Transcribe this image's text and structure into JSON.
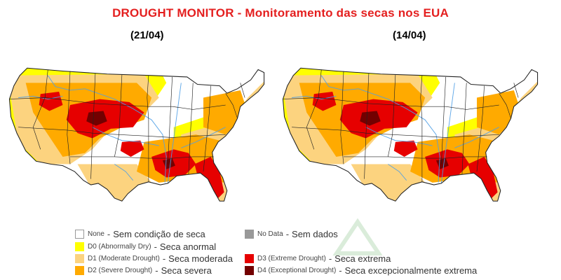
{
  "title": "DROUGHT MONITOR - Monitoramento das secas nos EUA",
  "maps": [
    {
      "date_label": "(21/04)"
    },
    {
      "date_label": "(14/04)"
    }
  ],
  "colors": {
    "none": "#ffffff",
    "d0": "#ffff00",
    "d1": "#fcd37f",
    "d2": "#ffaa00",
    "d3": "#e60000",
    "d4": "#730000",
    "no_data": "#999999",
    "rivers": "#4f9fe6",
    "borders": "#222222",
    "title": "#e41f1f"
  },
  "legend": {
    "none": {
      "code": "None",
      "sep": "-",
      "pt": "Sem condição de seca"
    },
    "d0": {
      "code": "D0 (Abnormally Dry)",
      "sep": "-",
      "pt": "Seca anormal"
    },
    "d1": {
      "code": "D1 (Moderate Drought)",
      "sep": "-",
      "pt": "Seca moderada"
    },
    "d2": {
      "code": "D2 (Severe Drought)",
      "sep": "-",
      "pt": "Seca severa"
    },
    "no_data": {
      "code": "No Data",
      "sep": "-",
      "pt": "Sem dados"
    },
    "d3": {
      "code": "D3 (Extreme Drought)",
      "sep": "-",
      "pt": "Seca extrema"
    },
    "d4": {
      "code": "D4 (Exceptional Drought)",
      "sep": "-",
      "pt": "Seca excepcionalmente extrema"
    }
  }
}
